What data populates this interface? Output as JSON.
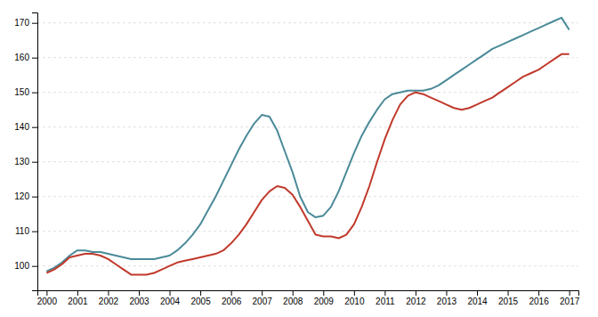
{
  "chart_data": {
    "type": "line",
    "x": [
      2000,
      2000.25,
      2000.5,
      2000.75,
      2001,
      2001.25,
      2001.5,
      2001.75,
      2002,
      2002.25,
      2002.5,
      2002.75,
      2003,
      2003.25,
      2003.5,
      2003.75,
      2004,
      2004.25,
      2004.5,
      2004.75,
      2005,
      2005.25,
      2005.5,
      2005.75,
      2006,
      2006.25,
      2006.5,
      2006.75,
      2007,
      2007.25,
      2007.5,
      2007.75,
      2008,
      2008.25,
      2008.5,
      2008.75,
      2009,
      2009.25,
      2009.5,
      2009.75,
      2010,
      2010.25,
      2010.5,
      2010.75,
      2011,
      2011.25,
      2011.5,
      2011.75,
      2012,
      2012.25,
      2012.5,
      2012.75,
      2013,
      2013.25,
      2013.5,
      2013.75,
      2014,
      2014.25,
      2014.5,
      2014.75,
      2015,
      2015.25,
      2015.5,
      2015.75,
      2016,
      2016.25,
      2016.5,
      2016.75,
      2017
    ],
    "series": [
      {
        "color": "#4a8a98",
        "values": [
          98.5,
          99.5,
          101.0,
          103.0,
          104.5,
          104.5,
          104.0,
          104.0,
          103.5,
          103.0,
          102.5,
          102.0,
          102.0,
          102.0,
          102.0,
          102.5,
          103.0,
          104.5,
          106.5,
          109.0,
          112.0,
          116.0,
          120.0,
          124.5,
          129.0,
          133.5,
          137.5,
          141.0,
          143.5,
          143.0,
          139.0,
          133.0,
          127.0,
          120.0,
          115.5,
          114.0,
          114.5,
          117.0,
          121.5,
          127.0,
          132.5,
          137.5,
          141.5,
          145.0,
          148.0,
          149.5,
          150.0,
          150.5,
          150.5,
          150.5,
          151.0,
          152.0,
          153.5,
          155.0,
          156.5,
          158.0,
          159.5,
          161.0,
          162.5,
          163.5,
          164.5,
          165.5,
          166.5,
          167.5,
          168.5,
          169.5,
          170.5,
          171.5,
          168.0
        ]
      },
      {
        "color": "#c0392b",
        "values": [
          98.0,
          99.0,
          100.5,
          102.5,
          103.0,
          103.5,
          103.5,
          103.0,
          102.0,
          100.5,
          99.0,
          97.5,
          97.5,
          97.5,
          98.0,
          99.0,
          100.0,
          101.0,
          101.5,
          102.0,
          102.5,
          103.0,
          103.5,
          104.5,
          106.5,
          109.0,
          112.0,
          115.5,
          119.0,
          121.5,
          123.0,
          122.5,
          120.5,
          117.0,
          113.0,
          109.0,
          108.5,
          108.5,
          108.0,
          109.0,
          112.0,
          117.0,
          123.0,
          130.0,
          136.5,
          142.0,
          146.5,
          149.0,
          150.0,
          149.5,
          148.5,
          147.5,
          146.5,
          145.5,
          145.0,
          145.5,
          146.5,
          147.5,
          148.5,
          150.0,
          151.5,
          153.0,
          154.5,
          155.5,
          156.5,
          158.0,
          159.5,
          161.0,
          161.0
        ]
      }
    ],
    "xlim": [
      1999.7,
      2017.3
    ],
    "xticks": [
      2000,
      2001,
      2002,
      2003,
      2004,
      2005,
      2006,
      2007,
      2008,
      2009,
      2010,
      2011,
      2012,
      2013,
      2014,
      2015,
      2016,
      2017
    ],
    "ylim": [
      93,
      173
    ],
    "yticks": [
      100,
      110,
      120,
      130,
      140,
      150,
      160,
      170
    ],
    "grid": true
  }
}
